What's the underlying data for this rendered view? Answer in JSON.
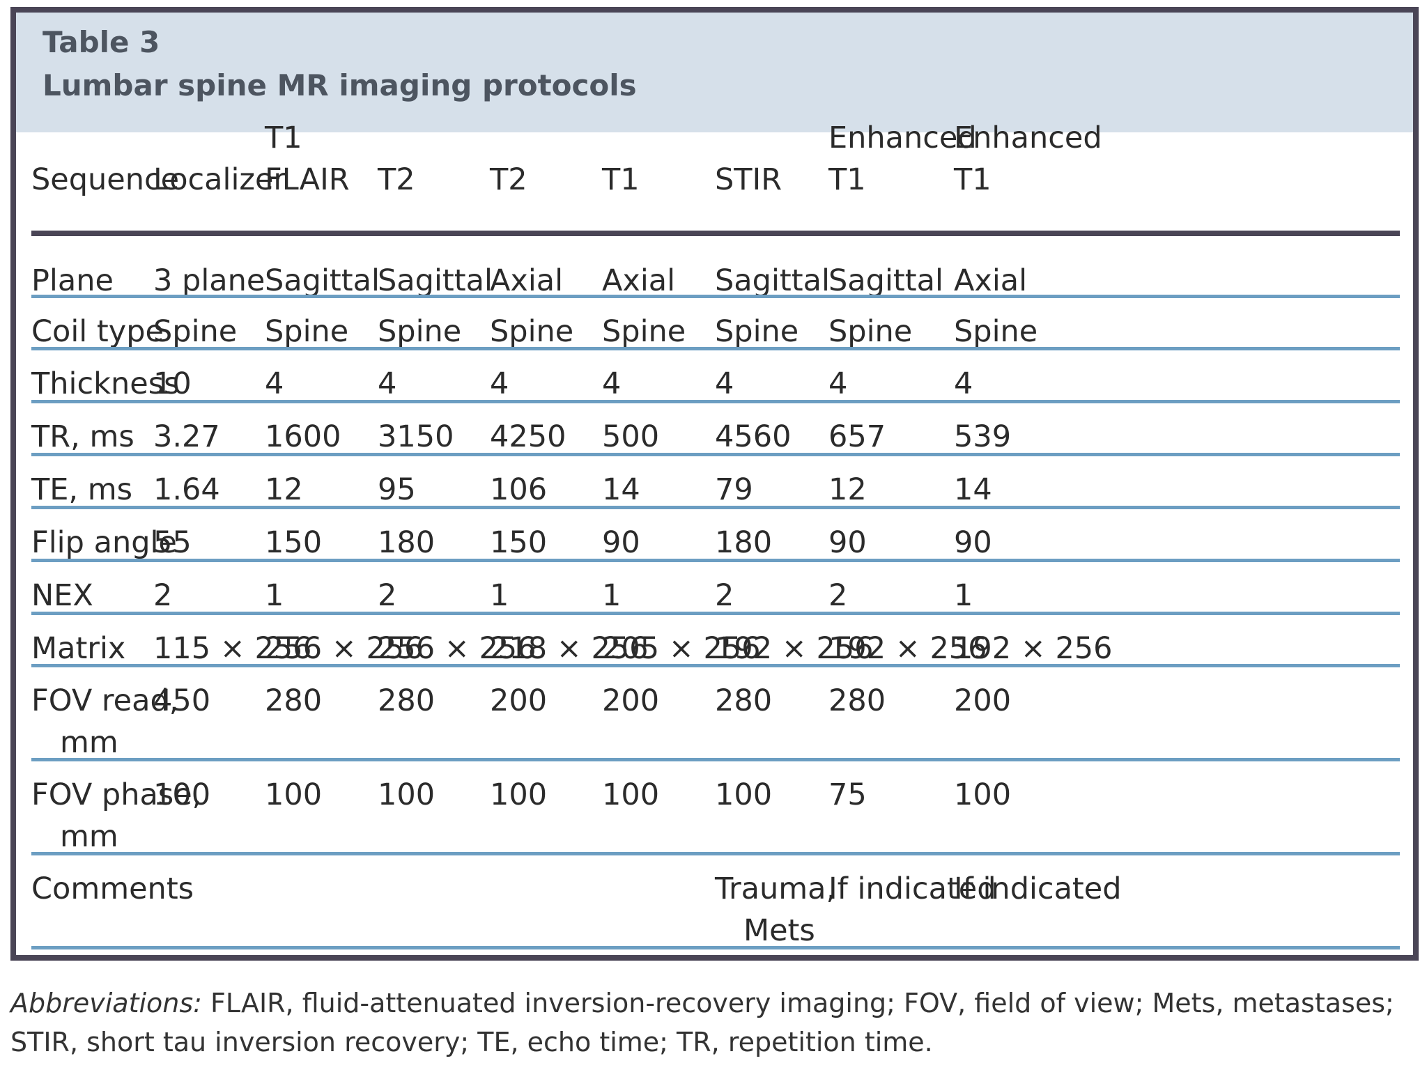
{
  "table": {
    "label": "Table 3",
    "caption": "Lumbar spine MR imaging protocols",
    "header": [
      "Sequence",
      "Localizer",
      "T1\nFLAIR",
      "T2",
      "T2",
      "T1",
      "STIR",
      "Enhanced\nT1",
      "Enhanced\nT1"
    ],
    "rows": [
      [
        "Plane",
        "3 plane",
        "Sagittal",
        "Sagittal",
        "Axial",
        "Axial",
        "Sagittal",
        "Sagittal",
        "Axial"
      ],
      [
        "Coil type",
        "Spine",
        "Spine",
        "Spine",
        "Spine",
        "Spine",
        "Spine",
        "Spine",
        "Spine"
      ],
      [
        "Thickness",
        "10",
        "4",
        "4",
        "4",
        "4",
        "4",
        "4",
        "4"
      ],
      [
        "TR, ms",
        "3.27",
        "1600",
        "3150",
        "4250",
        "500",
        "4560",
        "657",
        "539"
      ],
      [
        "TE, ms",
        "1.64",
        "12",
        "95",
        "106",
        "14",
        "79",
        "12",
        "14"
      ],
      [
        "Flip angle",
        "55",
        "150",
        "180",
        "150",
        "90",
        "180",
        "90",
        "90"
      ],
      [
        "NEX",
        "2",
        "1",
        "2",
        "1",
        "1",
        "2",
        "2",
        "1"
      ],
      [
        "Matrix",
        "115 × 256",
        "256 × 256",
        "256 × 256",
        "218 × 256",
        "205 × 256",
        "192 × 256",
        "192 × 256",
        "192 × 256"
      ],
      [
        "FOV read,\n   mm",
        "450",
        "280",
        "280",
        "200",
        "200",
        "280",
        "280",
        "200"
      ],
      [
        "FOV phase,\n   mm",
        "100",
        "100",
        "100",
        "100",
        "100",
        "100",
        "75",
        "100"
      ],
      [
        "Comments",
        "",
        "",
        "",
        "",
        "",
        "Trauma,\n   Mets",
        "If indicated",
        "If indicated"
      ]
    ]
  },
  "footnote": {
    "lead": "Abbreviations:",
    "text": " FLAIR, fluid-attenuated inversion-recovery imaging; FOV, field of view; Mets, metastases; STIR, short tau inversion recovery; TE, echo time; TR, repetition time."
  },
  "colors": {
    "frame": "#4a4556",
    "header_band": "#d6e0ea",
    "row_rule": "#6c9ec2"
  }
}
